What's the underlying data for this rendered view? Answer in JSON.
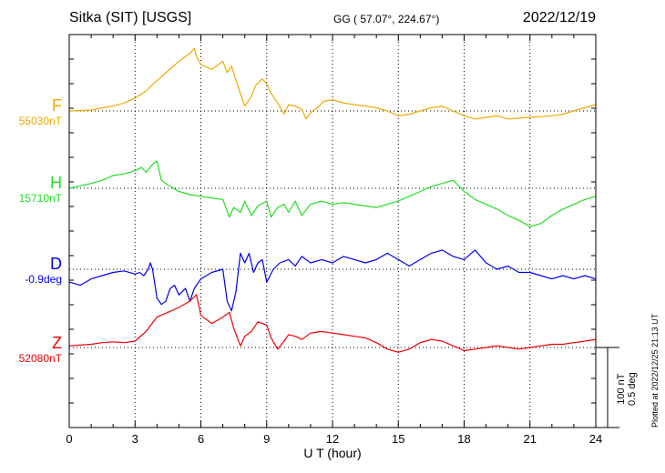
{
  "header": {
    "station": "Sitka (SIT)  [USGS]",
    "coords": "GG ( 57.07°, 224.67°)",
    "date": "2022/12/19"
  },
  "footer": {
    "plotted": "Plotted at 2022/12/25 21:13 UT",
    "scale_nt": "100 nT",
    "scale_deg": "0.5 deg"
  },
  "chart_data": {
    "type": "line",
    "xlabel": "U T (hour)",
    "xlim": [
      0,
      24
    ],
    "xticks": [
      "0",
      "3",
      "6",
      "9",
      "12",
      "15",
      "18",
      "21",
      "24"
    ],
    "grid": true,
    "scale_bar": {
      "nT": 100,
      "deg": 0.5
    },
    "series": [
      {
        "name": "F",
        "baseline_label": "55030nT",
        "unit": "nT",
        "baseline": 55030,
        "color": "#f0a800",
        "x": [
          0,
          1,
          1.5,
          2,
          2.5,
          3,
          3.5,
          4,
          4.5,
          5,
          5.5,
          5.7,
          5.8,
          6,
          6.5,
          7,
          7.2,
          7.4,
          7.7,
          8,
          8.3,
          8.5,
          8.8,
          9,
          9.2,
          9.5,
          9.8,
          10,
          10.3,
          10.6,
          10.8,
          11,
          11.3,
          11.6,
          12,
          12.5,
          13,
          13.5,
          14,
          14.5,
          15,
          15.5,
          16,
          16.5,
          17,
          17.5,
          18,
          18.5,
          19,
          19.5,
          20,
          20.5,
          21,
          21.5,
          22,
          22.5,
          23,
          23.5,
          24
        ],
        "y": [
          55030,
          55031,
          55034,
          55036,
          55040,
          55046,
          55055,
          55068,
          55080,
          55092,
          55102,
          55108,
          55098,
          55088,
          55082,
          55092,
          55078,
          55086,
          55060,
          55036,
          55048,
          55062,
          55070,
          55064,
          55052,
          55040,
          55026,
          55038,
          55036,
          55032,
          55020,
          55028,
          55034,
          55042,
          55044,
          55040,
          55038,
          55036,
          55034,
          55030,
          55024,
          55026,
          55030,
          55034,
          55036,
          55030,
          55024,
          55020,
          55022,
          55024,
          55020,
          55021,
          55022,
          55023,
          55024,
          55026,
          55030,
          55034,
          55038
        ]
      },
      {
        "name": "H",
        "baseline_label": "15710nT",
        "unit": "nT",
        "baseline": 15710,
        "color": "#22dd22",
        "x": [
          0,
          1,
          1.5,
          2,
          2.5,
          3,
          3.3,
          3.5,
          3.8,
          4,
          4.2,
          4.5,
          5,
          5.5,
          6,
          6.5,
          7,
          7.3,
          7.5,
          7.8,
          8,
          8.3,
          8.6,
          9,
          9.2,
          9.5,
          9.8,
          10,
          10.3,
          10.6,
          11,
          11.5,
          12,
          12.5,
          13,
          13.5,
          14,
          14.5,
          15,
          15.5,
          16,
          16.5,
          17,
          17.5,
          18,
          18.5,
          19,
          19.5,
          20,
          20.5,
          21,
          21.5,
          22,
          22.5,
          23,
          23.5,
          24
        ],
        "y": [
          15710,
          15716,
          15720,
          15726,
          15728,
          15732,
          15736,
          15730,
          15740,
          15744,
          15720,
          15714,
          15706,
          15702,
          15700,
          15698,
          15696,
          15674,
          15686,
          15680,
          15694,
          15676,
          15688,
          15694,
          15674,
          15686,
          15690,
          15680,
          15694,
          15676,
          15690,
          15694,
          15690,
          15692,
          15690,
          15688,
          15686,
          15690,
          15694,
          15700,
          15706,
          15712,
          15716,
          15720,
          15706,
          15696,
          15690,
          15684,
          15676,
          15670,
          15662,
          15666,
          15676,
          15684,
          15690,
          15696,
          15700
        ]
      },
      {
        "name": "D",
        "baseline_label": "-0.9deg",
        "unit": "deg",
        "baseline": -0.9,
        "color": "#0000ee",
        "x": [
          0,
          0.5,
          1,
          1.5,
          2,
          2.5,
          3,
          3.2,
          3.4,
          3.6,
          3.7,
          3.8,
          4,
          4.2,
          4.4,
          4.6,
          4.8,
          5,
          5.3,
          5.5,
          5.7,
          6,
          6.5,
          7,
          7.2,
          7.4,
          7.6,
          7.8,
          8,
          8.2,
          8.4,
          8.6,
          8.8,
          9,
          9.3,
          9.6,
          10,
          10.3,
          10.6,
          11,
          11.5,
          12,
          12.5,
          13,
          13.5,
          14,
          14.5,
          15,
          15.5,
          16,
          16.5,
          17,
          17.5,
          18,
          18.5,
          19,
          19.5,
          20,
          20.5,
          21,
          21.5,
          22,
          22.5,
          23,
          23.5,
          24
        ],
        "y": [
          -0.98,
          -1.0,
          -0.96,
          -0.94,
          -0.92,
          -0.91,
          -0.93,
          -0.92,
          -0.94,
          -0.9,
          -0.86,
          -0.9,
          -1.08,
          -1.12,
          -1.1,
          -1.02,
          -1.0,
          -1.06,
          -1.02,
          -1.1,
          -1.02,
          -0.96,
          -0.92,
          -0.9,
          -1.1,
          -1.16,
          -1.04,
          -0.8,
          -0.86,
          -0.8,
          -0.92,
          -0.86,
          -0.84,
          -0.98,
          -0.9,
          -0.86,
          -0.84,
          -0.88,
          -0.82,
          -0.86,
          -0.84,
          -0.86,
          -0.82,
          -0.84,
          -0.86,
          -0.84,
          -0.8,
          -0.84,
          -0.88,
          -0.84,
          -0.8,
          -0.78,
          -0.82,
          -0.84,
          -0.78,
          -0.86,
          -0.9,
          -0.88,
          -0.92,
          -0.92,
          -0.94,
          -0.96,
          -0.94,
          -0.96,
          -0.94,
          -0.96
        ]
      },
      {
        "name": "Z",
        "baseline_label": "52080nT",
        "unit": "nT",
        "baseline": 52080,
        "color": "#ee0000",
        "x": [
          0,
          1,
          1.5,
          2,
          2.5,
          3,
          3.5,
          4,
          4.5,
          5,
          5.5,
          5.8,
          6,
          6.5,
          7,
          7.3,
          7.5,
          7.8,
          8,
          8.3,
          8.6,
          9,
          9.2,
          9.5,
          9.8,
          10,
          10.3,
          10.6,
          11,
          11.5,
          12,
          12.5,
          13,
          13.5,
          14,
          14.5,
          15,
          15.5,
          16,
          16.5,
          17,
          17.5,
          18,
          18.5,
          19,
          19.5,
          20,
          20.5,
          21,
          21.5,
          22,
          22.5,
          23,
          23.5,
          24
        ],
        "y": [
          52082,
          52084,
          52086,
          52087,
          52086,
          52088,
          52100,
          52118,
          52124,
          52130,
          52138,
          52146,
          52120,
          52110,
          52118,
          52124,
          52104,
          52082,
          52094,
          52100,
          52112,
          52108,
          52092,
          52078,
          52088,
          52096,
          52094,
          52090,
          52098,
          52100,
          52098,
          52096,
          52094,
          52092,
          52086,
          52078,
          52074,
          52078,
          52086,
          52090,
          52088,
          52082,
          52076,
          52078,
          52080,
          52082,
          52080,
          52078,
          52080,
          52082,
          52084,
          52084,
          52086,
          52088,
          52090
        ]
      }
    ]
  }
}
